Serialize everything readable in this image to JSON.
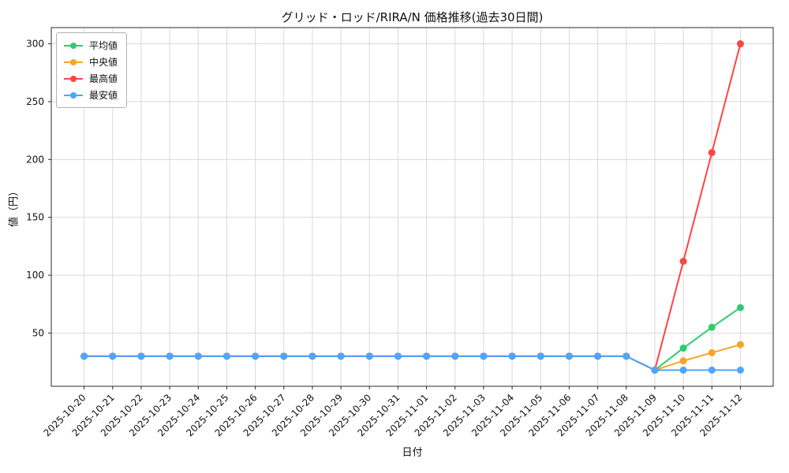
{
  "chart_data": {
    "type": "line",
    "title": "グリッド・ロッド/RIRA/N 価格推移(過去30日間)",
    "xlabel": "日付",
    "ylabel": "値（円）",
    "grid": true,
    "legend_position": "upper-left",
    "ylim": [
      4,
      314
    ],
    "yticks": [
      50,
      100,
      150,
      200,
      250,
      300
    ],
    "x": [
      "2025-10-20",
      "2025-10-21",
      "2025-10-22",
      "2025-10-23",
      "2025-10-24",
      "2025-10-25",
      "2025-10-26",
      "2025-10-27",
      "2025-10-28",
      "2025-10-29",
      "2025-10-30",
      "2025-10-31",
      "2025-11-01",
      "2025-11-02",
      "2025-11-03",
      "2025-11-04",
      "2025-11-05",
      "2025-11-06",
      "2025-11-07",
      "2025-11-08",
      "2025-11-09",
      "2025-11-10",
      "2025-11-11",
      "2025-11-12"
    ],
    "series": [
      {
        "key": "average",
        "name": "平均値",
        "color": "#2ecc71",
        "values": [
          30,
          30,
          30,
          30,
          30,
          30,
          30,
          30,
          30,
          30,
          30,
          30,
          30,
          30,
          30,
          30,
          30,
          30,
          30,
          30,
          18,
          37,
          55,
          72
        ]
      },
      {
        "key": "median",
        "name": "中央値",
        "color": "#f5a623",
        "values": [
          30,
          30,
          30,
          30,
          30,
          30,
          30,
          30,
          30,
          30,
          30,
          30,
          30,
          30,
          30,
          30,
          30,
          30,
          30,
          30,
          18,
          26,
          33,
          40
        ]
      },
      {
        "key": "max",
        "name": "最高値",
        "color": "#ff4444",
        "values": [
          30,
          30,
          30,
          30,
          30,
          30,
          30,
          30,
          30,
          30,
          30,
          30,
          30,
          30,
          30,
          30,
          30,
          30,
          30,
          30,
          18,
          112,
          206,
          300
        ]
      },
      {
        "key": "min",
        "name": "最安値",
        "color": "#4da6ff",
        "values": [
          30,
          30,
          30,
          30,
          30,
          30,
          30,
          30,
          30,
          30,
          30,
          30,
          30,
          30,
          30,
          30,
          30,
          30,
          30,
          30,
          18,
          18,
          18,
          18
        ]
      }
    ],
    "axis_color": "#2b2b2b",
    "grid_color": "#d9d9d9"
  }
}
